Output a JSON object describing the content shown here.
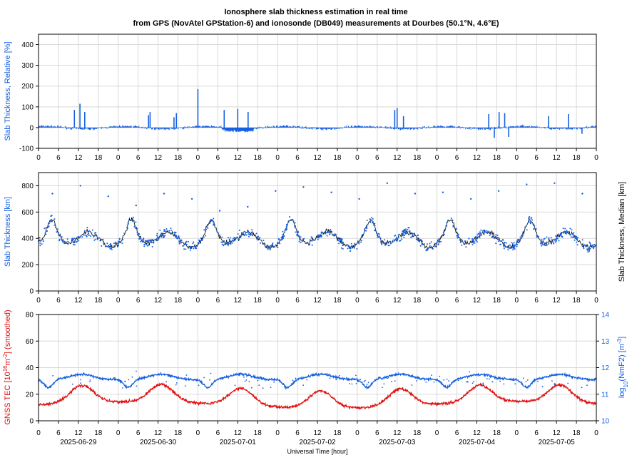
{
  "title_line1": "Ionosphere slab thickness estimation in real time",
  "title_line2": "from GPS (NovAtel GPStation-6) and ionosonde (DB049) measurements at Dourbes (50.1°N, 4.6°E)",
  "xlabel": "Universal Time [hour]",
  "hour_ticks": [
    "0",
    "6",
    "12",
    "18",
    "0",
    "6",
    "12",
    "18",
    "0",
    "6",
    "12",
    "18",
    "0",
    "6",
    "12",
    "18",
    "0",
    "6",
    "12",
    "18",
    "0",
    "6",
    "12",
    "18",
    "0",
    "6",
    "12",
    "18",
    "0"
  ],
  "date_labels": [
    "2025-06-29",
    "2025-06-30",
    "2025-07-01",
    "2025-07-02",
    "2025-07-03",
    "2025-07-04",
    "2025-07-05"
  ],
  "colors": {
    "blue": "#1560e0",
    "red": "#e01010",
    "black": "#000000",
    "grid": "#d8d8d8"
  },
  "chart_data": [
    {
      "type": "bar",
      "ylabel": "Slab Thickness, Relative [%]",
      "yticks": [
        "400",
        "300",
        "200",
        "100",
        "0",
        "-100"
      ],
      "ylim": [
        -100,
        450
      ],
      "xlim_days": [
        0,
        7
      ],
      "grid": true,
      "series": [
        {
          "color": "#1560e0",
          "spikes": [
            {
              "x_day": 0.52,
              "value": 115
            },
            {
              "x_day": 0.45,
              "value": 85
            },
            {
              "x_day": 0.58,
              "value": 75
            },
            {
              "x_day": 1.4,
              "value": 75
            },
            {
              "x_day": 1.38,
              "value": 60
            },
            {
              "x_day": 1.73,
              "value": 70
            },
            {
              "x_day": 1.7,
              "value": 50
            },
            {
              "x_day": 2.0,
              "value": 185
            },
            {
              "x_day": 2.33,
              "value": 85
            },
            {
              "x_day": 2.5,
              "value": 90
            },
            {
              "x_day": 2.63,
              "value": 75
            },
            {
              "x_day": 4.47,
              "value": 85
            },
            {
              "x_day": 4.5,
              "value": 95
            },
            {
              "x_day": 4.58,
              "value": 55
            },
            {
              "x_day": 5.65,
              "value": 65
            },
            {
              "x_day": 5.78,
              "value": 75
            },
            {
              "x_day": 5.85,
              "value": 70
            },
            {
              "x_day": 5.72,
              "value": -50
            },
            {
              "x_day": 5.9,
              "value": -45
            },
            {
              "x_day": 6.4,
              "value": 55
            },
            {
              "x_day": 6.65,
              "value": 65
            },
            {
              "x_day": 6.82,
              "value": -30
            }
          ]
        }
      ]
    },
    {
      "type": "line",
      "ylabel": "Slab Thickness [km]",
      "y2label": "Slab Thickness, Median [km]",
      "yticks": [
        "800",
        "600",
        "400",
        "200",
        "0"
      ],
      "ylim": [
        0,
        900
      ],
      "xlim_days": [
        0,
        7
      ],
      "grid": true,
      "series": [
        {
          "kind": "line",
          "color": "#000000"
        },
        {
          "kind": "scatter",
          "color": "#1560e0"
        }
      ],
      "outliers_km": [
        740,
        800,
        720,
        650,
        740,
        700,
        610,
        640,
        760,
        790,
        750,
        700,
        820,
        740,
        750,
        700,
        760,
        810,
        820,
        740
      ]
    },
    {
      "type": "line",
      "ylabel": "GNSS TEC [10",
      "ylabel_exp": "16",
      "ylabel_unit": "m",
      "ylabel_unit_exp": "-2",
      "ylabel_tail": "] (smoothed)",
      "y2label_prefix": "log",
      "y2label_sub": "10",
      "y2label_mid": "(NmF2) [m",
      "y2label_exp": "-3",
      "y2label_tail": "]",
      "yticks": [
        "80",
        "60",
        "40",
        "20",
        "0"
      ],
      "y2ticks": [
        "14",
        "13",
        "12",
        "11",
        "10"
      ],
      "ylim": [
        0,
        80
      ],
      "y2lim": [
        10,
        14
      ],
      "xlim_days": [
        0,
        7
      ],
      "grid": true,
      "series": [
        {
          "kind": "line",
          "color": "#e01010"
        },
        {
          "kind": "line",
          "color": "#1560e0"
        }
      ]
    }
  ]
}
